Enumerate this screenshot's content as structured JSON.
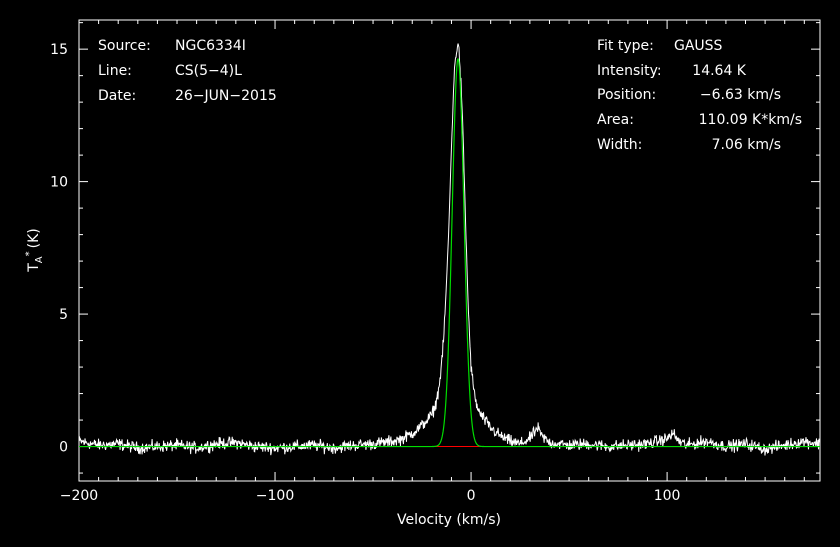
{
  "chart_data": {
    "type": "line",
    "xlabel": "Velocity (km/s)",
    "ylabel": "T_A^* (K)",
    "xlim": [
      -200,
      178
    ],
    "ylim": [
      -1.3,
      16.1
    ],
    "x_ticks": [
      -200,
      -100,
      0,
      100
    ],
    "x_tick_labels": [
      "−200",
      "−100",
      "0",
      "100"
    ],
    "y_ticks": [
      0,
      5,
      10,
      15
    ],
    "y_tick_labels": [
      "0",
      "5",
      "10",
      "15"
    ],
    "grid": false,
    "info_left": [
      {
        "key": "Source:",
        "value": "NGC6334I"
      },
      {
        "key": "Line:",
        "value": "CS(5−4)L"
      },
      {
        "key": "Date:",
        "value": "26−JUN−2015"
      }
    ],
    "info_right": [
      {
        "key": "Fit type:",
        "value": "GAUSS"
      },
      {
        "key": "Intensity:",
        "value": "14.64 K"
      },
      {
        "key": "Position:",
        "value": "−6.63 km/s"
      },
      {
        "key": "Area:",
        "value": "110.09 K*km/s"
      },
      {
        "key": "Width:",
        "value": "7.06 km/s"
      }
    ],
    "series": [
      {
        "role": "observed spectrum",
        "color": "#ffffff",
        "x": [
          -200,
          -190,
          -180,
          -170,
          -160,
          -150,
          -140,
          -130,
          -120,
          -110,
          -100,
          -90,
          -80,
          -70,
          -60,
          -50,
          -40,
          -35,
          -30,
          -25,
          -20,
          -18,
          -16,
          -14,
          -12,
          -11,
          -10,
          -9,
          -8,
          -7,
          -6.63,
          -6,
          -5,
          -4,
          -3,
          -2,
          -1,
          0,
          2,
          4,
          6,
          8,
          10,
          15,
          20,
          25,
          30,
          32,
          34,
          36,
          40,
          50,
          60,
          70,
          80,
          90,
          100,
          103,
          106,
          110,
          120,
          130,
          140,
          150,
          160,
          170,
          178
        ],
        "y": [
          0.2,
          0.05,
          0.1,
          -0.05,
          0.0,
          0.05,
          -0.05,
          0.1,
          0.15,
          0.0,
          -0.05,
          0.0,
          0.05,
          -0.05,
          0.05,
          0.1,
          0.2,
          0.3,
          0.5,
          0.8,
          1.2,
          1.6,
          2.4,
          4.0,
          7.0,
          9.0,
          11.3,
          13.4,
          14.7,
          15.1,
          15.2,
          14.8,
          13.5,
          11.5,
          9.0,
          6.5,
          4.5,
          3.0,
          1.8,
          1.3,
          1.1,
          0.9,
          0.7,
          0.4,
          0.2,
          0.1,
          0.3,
          0.5,
          0.7,
          0.4,
          0.15,
          0.05,
          0.1,
          0.0,
          0.05,
          0.1,
          0.3,
          0.5,
          0.2,
          0.05,
          0.2,
          0.0,
          0.1,
          -0.1,
          0.05,
          0.2,
          0.1
        ]
      },
      {
        "role": "gaussian fit",
        "color": "#00dd00",
        "function": "gaussian",
        "amplitude": 14.64,
        "center": -6.63,
        "fwhm": 7.06
      },
      {
        "role": "fit baseline",
        "color": "#ff0000",
        "x": [
          -30,
          18
        ],
        "y": [
          0,
          0
        ]
      }
    ]
  }
}
